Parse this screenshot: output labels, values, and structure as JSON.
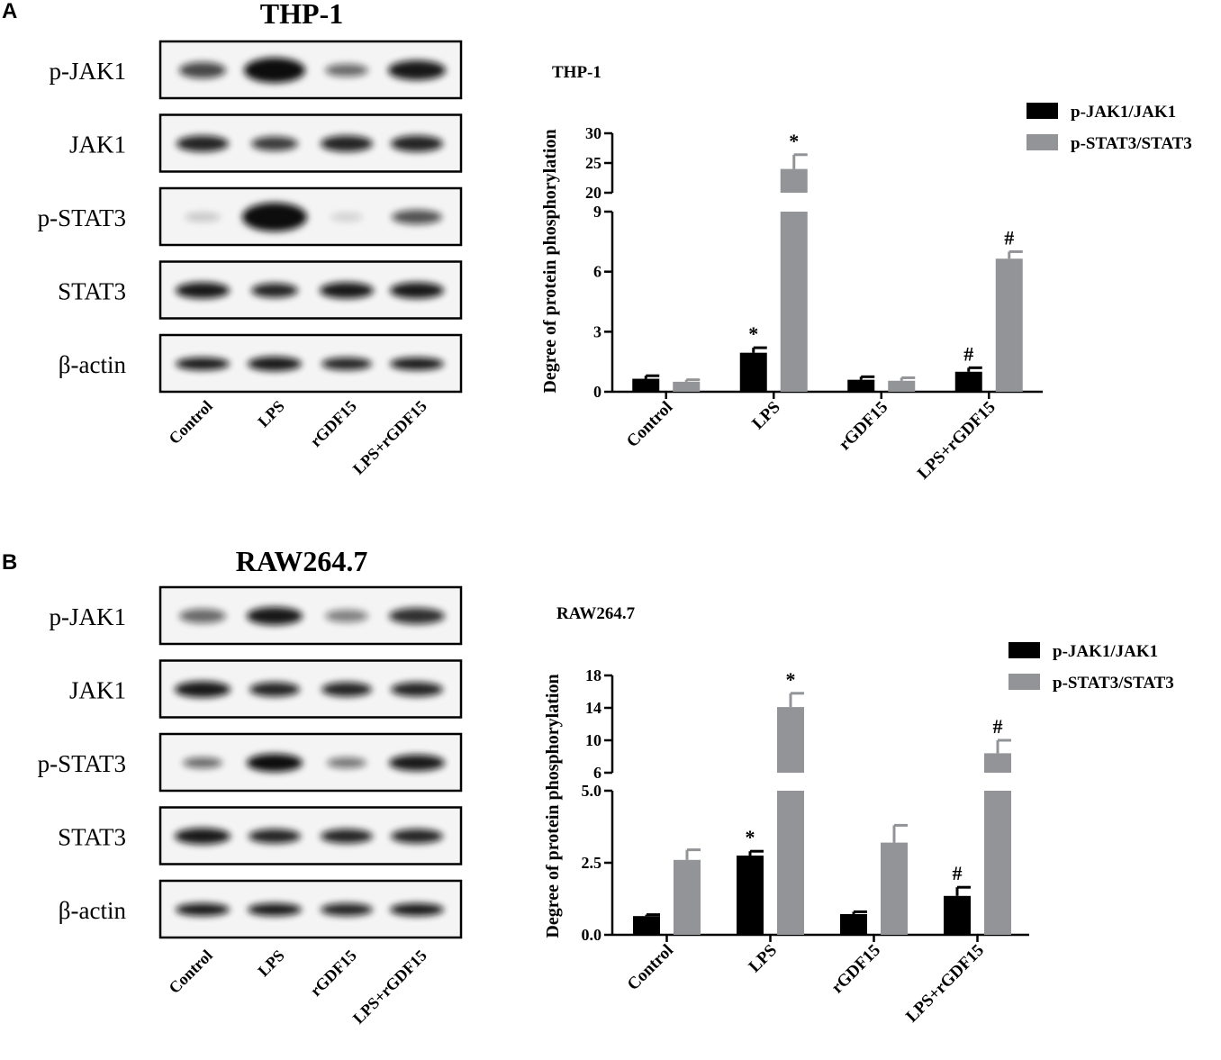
{
  "panels": [
    {
      "label": "A",
      "blot_title": "THP-1",
      "blot_rows": [
        "p-JAK1",
        "JAK1",
        "p-STAT3",
        "STAT3",
        "β-actin"
      ],
      "blot_lanes": [
        "Control",
        "LPS",
        "rGDF15",
        "LPS+rGDF15"
      ]
    },
    {
      "label": "B",
      "blot_title": "RAW264.7",
      "blot_rows": [
        "p-JAK1",
        "JAK1",
        "p-STAT3",
        "STAT3",
        "β-actin"
      ],
      "blot_lanes": [
        "Control",
        "LPS",
        "rGDF15",
        "LPS+rGDF15"
      ]
    }
  ],
  "chart_data": [
    {
      "type": "bar",
      "title": "THP-1",
      "y_label": "Degree of protein phosphorylation",
      "categories": [
        "Control",
        "LPS",
        "rGDF15",
        "LPS+rGDF15"
      ],
      "legend": "upper right",
      "y_segments": [
        {
          "ylim": [
            0,
            9
          ],
          "yticks": [
            0,
            3,
            6,
            9
          ]
        },
        {
          "ylim": [
            20,
            30
          ],
          "yticks": [
            20,
            25,
            30
          ]
        }
      ],
      "series": [
        {
          "name": "p-JAK1/JAK1",
          "color": "#000000",
          "values": [
            0.65,
            1.95,
            0.6,
            1.0
          ],
          "errors": [
            0.15,
            0.25,
            0.15,
            0.2
          ],
          "annotations": [
            null,
            "*",
            null,
            "#"
          ]
        },
        {
          "name": "p-STAT3/STAT3",
          "color": "#929497",
          "values": [
            0.5,
            24,
            0.55,
            6.65
          ],
          "errors": [
            0.1,
            2.4,
            0.15,
            0.35
          ],
          "annotations": [
            null,
            "*",
            null,
            "#"
          ]
        }
      ]
    },
    {
      "type": "bar",
      "title": "RAW264.7",
      "y_label": "Degree of protein phosphorylation",
      "categories": [
        "Control",
        "LPS",
        "rGDF15",
        "LPS+rGDF15"
      ],
      "legend": "upper right",
      "y_segments": [
        {
          "ylim": [
            0,
            5
          ],
          "yticks": [
            {
              "value": 0,
              "label": "0.0"
            },
            2.5,
            {
              "value": 5,
              "label": "5.0"
            }
          ]
        },
        {
          "ylim": [
            6,
            18
          ],
          "yticks": [
            6,
            10,
            14,
            18
          ]
        }
      ],
      "series": [
        {
          "name": "p-JAK1/JAK1",
          "color": "#000000",
          "values": [
            0.65,
            2.75,
            0.72,
            1.35
          ],
          "errors": [
            0.05,
            0.15,
            0.08,
            0.3
          ],
          "annotations": [
            null,
            "*",
            null,
            "#"
          ]
        },
        {
          "name": "p-STAT3/STAT3",
          "color": "#929497",
          "values": [
            2.6,
            14.1,
            3.2,
            8.4
          ],
          "errors": [
            0.35,
            1.7,
            0.6,
            1.6
          ],
          "annotations": [
            null,
            "*",
            null,
            "#"
          ]
        }
      ]
    }
  ]
}
